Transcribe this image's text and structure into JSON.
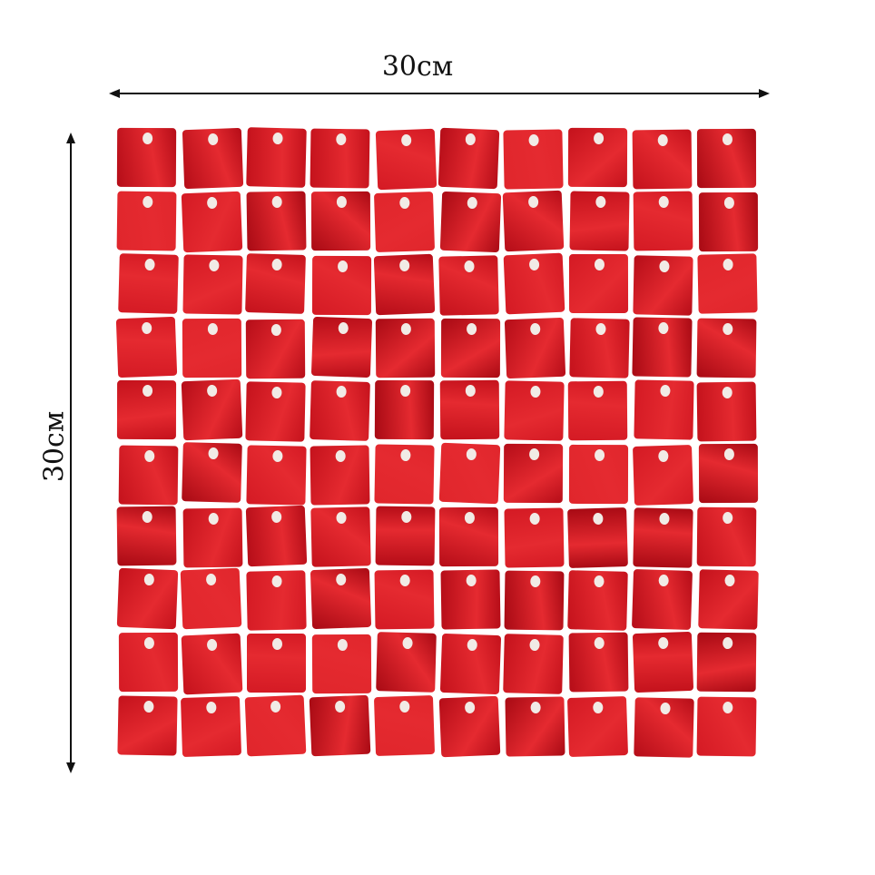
{
  "dimensions": {
    "width_label": "30см",
    "height_label": "30см"
  },
  "panel": {
    "rows": 10,
    "columns": 10,
    "colors": [
      "#d41a24",
      "#c4121c",
      "#b50d18",
      "#e0262c",
      "#a80a14"
    ]
  }
}
